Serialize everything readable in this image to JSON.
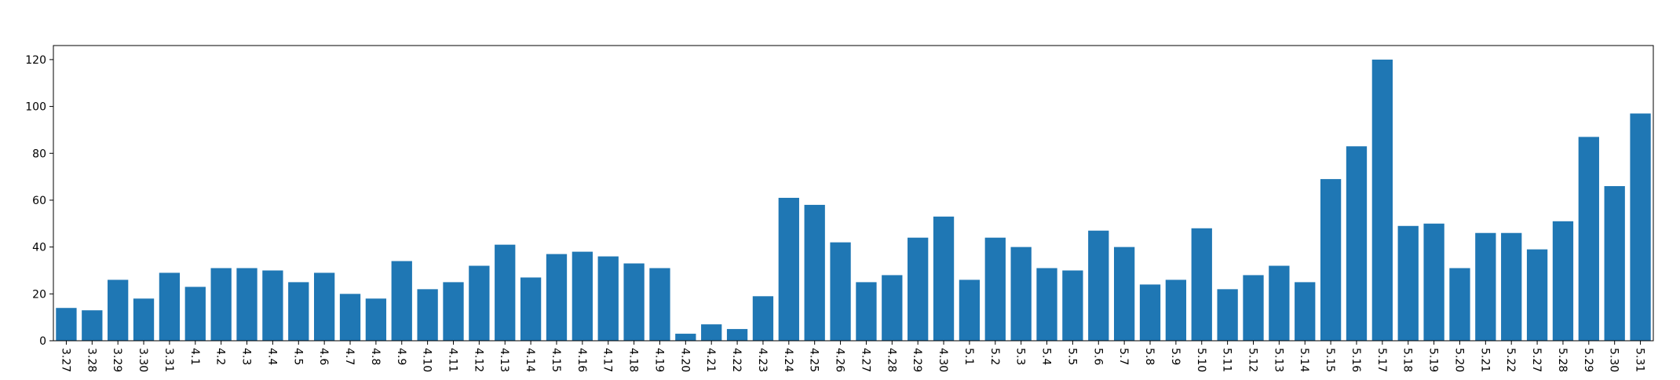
{
  "chart_data": {
    "type": "bar",
    "title": "",
    "xlabel": "",
    "ylabel": "",
    "ylim": [
      0,
      126
    ],
    "yticks": [
      0,
      20,
      40,
      60,
      80,
      100,
      120
    ],
    "grid": false,
    "bar_color": "#1f77b4",
    "categories": [
      "3.27",
      "3.28",
      "3.29",
      "3.30",
      "3.31",
      "4.1",
      "4.2",
      "4.3",
      "4.4",
      "4.5",
      "4.6",
      "4.7",
      "4.8",
      "4.9",
      "4.10",
      "4.11",
      "4.12",
      "4.13",
      "4.14",
      "4.15",
      "4.16",
      "4.17",
      "4.18",
      "4.19",
      "4.20",
      "4.21",
      "4.22",
      "4.23",
      "4.24",
      "4.25",
      "4.26",
      "4.27",
      "4.28",
      "4.29",
      "4.30",
      "5.1",
      "5.2",
      "5.3",
      "5.4",
      "5.5",
      "5.6",
      "5.7",
      "5.8",
      "5.9",
      "5.10",
      "5.11",
      "5.12",
      "5.13",
      "5.14",
      "5.15",
      "5.16",
      "5.17",
      "5.18",
      "5.19",
      "5.20",
      "5.21",
      "5.22",
      "5.27",
      "5.28",
      "5.29",
      "5.30",
      "5.31"
    ],
    "values": [
      14,
      13,
      26,
      18,
      29,
      23,
      31,
      31,
      30,
      25,
      29,
      20,
      18,
      34,
      22,
      25,
      32,
      41,
      27,
      37,
      38,
      36,
      33,
      31,
      3,
      7,
      5,
      19,
      61,
      58,
      42,
      25,
      28,
      44,
      53,
      26,
      44,
      40,
      31,
      30,
      47,
      40,
      24,
      26,
      48,
      22,
      28,
      32,
      25,
      69,
      83,
      120,
      49,
      50,
      31,
      46,
      46,
      39,
      51,
      87,
      66,
      97
    ]
  }
}
